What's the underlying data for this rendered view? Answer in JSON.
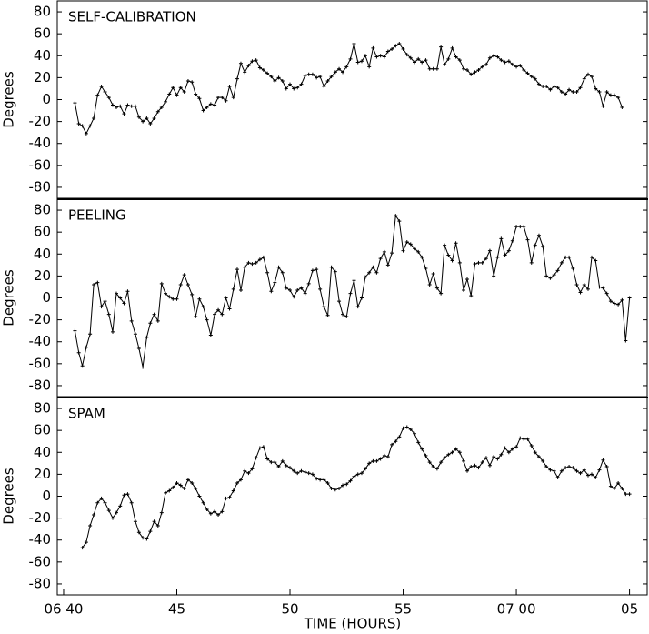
{
  "chart_data": [
    {
      "type": "line",
      "title": "SELF-CALIBRATION",
      "y_label": "Degrees",
      "color": "#000000",
      "xlim": [
        39.72,
        65.82
      ],
      "ylim": [
        -90,
        90
      ],
      "yticks": [
        -80,
        -60,
        -40,
        -20,
        0,
        20,
        40,
        60,
        80
      ],
      "x": [
        40.5,
        40.67,
        40.83,
        41,
        41.17,
        41.33,
        41.5,
        41.67,
        41.83,
        42,
        42.17,
        42.33,
        42.5,
        42.67,
        42.83,
        43,
        43.17,
        43.33,
        43.5,
        43.67,
        43.83,
        44,
        44.17,
        44.33,
        44.5,
        44.67,
        44.83,
        45,
        45.17,
        45.33,
        45.5,
        45.67,
        45.83,
        46,
        46.17,
        46.33,
        46.5,
        46.67,
        46.83,
        47,
        47.17,
        47.33,
        47.5,
        47.67,
        47.83,
        48,
        48.17,
        48.33,
        48.5,
        48.67,
        48.83,
        49,
        49.17,
        49.33,
        49.5,
        49.67,
        49.83,
        50,
        50.17,
        50.33,
        50.5,
        50.67,
        50.83,
        51,
        51.17,
        51.33,
        51.5,
        51.67,
        51.83,
        52,
        52.17,
        52.33,
        52.5,
        52.67,
        52.83,
        53,
        53.17,
        53.33,
        53.5,
        53.67,
        53.83,
        54,
        54.17,
        54.33,
        54.5,
        54.67,
        54.83,
        55,
        55.17,
        55.33,
        55.5,
        55.67,
        55.83,
        56,
        56.17,
        56.33,
        56.5,
        56.67,
        56.83,
        57,
        57.17,
        57.33,
        57.5,
        57.67,
        57.83,
        58,
        58.17,
        58.33,
        58.5,
        58.67,
        58.83,
        59,
        59.17,
        59.33,
        59.5,
        59.67,
        59.83,
        60,
        60.17,
        60.33,
        60.5,
        60.67,
        60.83,
        61,
        61.17,
        61.33,
        61.5,
        61.67,
        61.83,
        62,
        62.17,
        62.33,
        62.5,
        62.67,
        62.83,
        63,
        63.17,
        63.33,
        63.5,
        63.67,
        63.83,
        64,
        64.17,
        64.33,
        64.5,
        64.67
      ],
      "values": [
        -3,
        -22,
        -24,
        -31,
        -24,
        -17,
        4,
        12,
        7,
        2,
        -5,
        -7,
        -6,
        -13,
        -5,
        -6,
        -6,
        -16,
        -20,
        -17,
        -22,
        -17,
        -11,
        -7,
        -2,
        5,
        11,
        4,
        11,
        7,
        17,
        16,
        5,
        1,
        -10,
        -7,
        -4,
        -5,
        2,
        2,
        -1,
        12,
        2,
        19,
        33,
        25,
        31,
        35,
        36,
        29,
        27,
        24,
        21,
        17,
        20,
        17,
        10,
        14,
        10,
        11,
        14,
        22,
        23,
        23,
        20,
        21,
        12,
        17,
        21,
        25,
        28,
        25,
        30,
        37,
        51,
        34,
        35,
        40,
        30,
        47,
        39,
        40,
        39,
        44,
        46,
        49,
        51,
        46,
        41,
        38,
        34,
        37,
        34,
        36,
        28,
        28,
        28,
        48,
        32,
        37,
        47,
        39,
        36,
        28,
        27,
        23,
        25,
        27,
        30,
        32,
        38,
        40,
        39,
        36,
        34,
        35,
        32,
        30,
        31,
        27,
        24,
        21,
        19,
        14,
        12,
        12,
        9,
        12,
        11,
        7,
        5,
        9,
        7,
        7,
        11,
        19,
        23,
        21,
        10,
        7,
        -6,
        7,
        4,
        4,
        2,
        -7
      ]
    },
    {
      "type": "line",
      "title": "PEELING",
      "y_label": "Degrees",
      "color": "#000000",
      "xlim": [
        39.72,
        65.82
      ],
      "ylim": [
        -90,
        90
      ],
      "yticks": [
        -80,
        -60,
        -40,
        -20,
        0,
        20,
        40,
        60,
        80
      ],
      "x": [
        40.5,
        40.67,
        40.83,
        41,
        41.17,
        41.33,
        41.5,
        41.67,
        41.83,
        42,
        42.17,
        42.33,
        42.5,
        42.67,
        42.83,
        43,
        43.17,
        43.33,
        43.5,
        43.67,
        43.83,
        44,
        44.17,
        44.33,
        44.5,
        44.67,
        44.83,
        45,
        45.17,
        45.33,
        45.5,
        45.67,
        45.83,
        46,
        46.17,
        46.33,
        46.5,
        46.67,
        46.83,
        47,
        47.17,
        47.33,
        47.5,
        47.67,
        47.83,
        48,
        48.17,
        48.33,
        48.5,
        48.67,
        48.83,
        49,
        49.17,
        49.33,
        49.5,
        49.67,
        49.83,
        50,
        50.17,
        50.33,
        50.5,
        50.67,
        50.83,
        51,
        51.17,
        51.33,
        51.5,
        51.67,
        51.83,
        52,
        52.17,
        52.33,
        52.5,
        52.67,
        52.83,
        53,
        53.17,
        53.33,
        53.5,
        53.67,
        53.83,
        54,
        54.17,
        54.33,
        54.5,
        54.67,
        54.83,
        55,
        55.17,
        55.33,
        55.5,
        55.67,
        55.83,
        56,
        56.17,
        56.33,
        56.5,
        56.67,
        56.83,
        57,
        57.17,
        57.33,
        57.5,
        57.67,
        57.83,
        58,
        58.17,
        58.33,
        58.5,
        58.67,
        58.83,
        59,
        59.17,
        59.33,
        59.5,
        59.67,
        59.83,
        60,
        60.17,
        60.33,
        60.5,
        60.67,
        60.83,
        61,
        61.17,
        61.33,
        61.5,
        61.67,
        61.83,
        62,
        62.17,
        62.33,
        62.5,
        62.67,
        62.83,
        63,
        63.17,
        63.33,
        63.5,
        63.67,
        63.83,
        64,
        64.17,
        64.33,
        64.5,
        64.67,
        64.83,
        65
      ],
      "values": [
        -30,
        -50,
        -62,
        -45,
        -33,
        12,
        14,
        -8,
        -3,
        -15,
        -31,
        4,
        0,
        -5,
        6,
        -21,
        -33,
        -46,
        -63,
        -36,
        -23,
        -15,
        -21,
        13,
        4,
        1,
        -1,
        -1,
        12,
        21,
        12,
        3,
        -17,
        -1,
        -8,
        -20,
        -34,
        -15,
        -11,
        -15,
        0,
        -10,
        8,
        26,
        7,
        28,
        32,
        31,
        32,
        35,
        37,
        23,
        6,
        14,
        28,
        23,
        9,
        7,
        1,
        7,
        9,
        4,
        13,
        25,
        26,
        8,
        -8,
        -16,
        28,
        24,
        -3,
        -15,
        -17,
        4,
        16,
        -8,
        0,
        19,
        23,
        28,
        23,
        36,
        42,
        30,
        41,
        75,
        70,
        43,
        51,
        49,
        45,
        42,
        37,
        27,
        12,
        22,
        9,
        4,
        48,
        39,
        34,
        50,
        32,
        7,
        17,
        2,
        31,
        32,
        32,
        36,
        43,
        20,
        37,
        54,
        39,
        43,
        52,
        65,
        65,
        65,
        53,
        32,
        48,
        57,
        47,
        20,
        18,
        21,
        25,
        32,
        37,
        37,
        27,
        12,
        5,
        12,
        8,
        37,
        34,
        10,
        9,
        4,
        -3,
        -5,
        -6,
        -2,
        -39,
        0
      ]
    },
    {
      "type": "line",
      "title": "SPAM",
      "y_label": "Degrees",
      "x_label": "TIME (HOURS)",
      "color": "#000000",
      "xlim": [
        39.72,
        65.82
      ],
      "ylim": [
        -90,
        90
      ],
      "yticks": [
        -80,
        -60,
        -40,
        -20,
        0,
        20,
        40,
        60,
        80
      ],
      "xticks": [
        {
          "value": 40,
          "label": "06 40"
        },
        45,
        50,
        55,
        {
          "value": 60,
          "label": "07 00"
        },
        {
          "value": 65,
          "label": "05"
        }
      ],
      "x": [
        40.83,
        41,
        41.17,
        41.33,
        41.5,
        41.67,
        41.83,
        42,
        42.17,
        42.33,
        42.5,
        42.67,
        42.83,
        43,
        43.17,
        43.33,
        43.5,
        43.67,
        43.83,
        44,
        44.17,
        44.33,
        44.5,
        44.67,
        44.83,
        45,
        45.17,
        45.33,
        45.5,
        45.67,
        45.83,
        46,
        46.17,
        46.33,
        46.5,
        46.67,
        46.83,
        47,
        47.17,
        47.33,
        47.5,
        47.67,
        47.83,
        48,
        48.17,
        48.33,
        48.5,
        48.67,
        48.83,
        49,
        49.17,
        49.33,
        49.5,
        49.67,
        49.83,
        50,
        50.17,
        50.33,
        50.5,
        50.67,
        50.83,
        51,
        51.17,
        51.33,
        51.5,
        51.67,
        51.83,
        52,
        52.17,
        52.33,
        52.5,
        52.67,
        52.83,
        53,
        53.17,
        53.33,
        53.5,
        53.67,
        53.83,
        54,
        54.17,
        54.33,
        54.5,
        54.67,
        54.83,
        55,
        55.17,
        55.33,
        55.5,
        55.67,
        55.83,
        56,
        56.17,
        56.33,
        56.5,
        56.67,
        56.83,
        57,
        57.17,
        57.33,
        57.5,
        57.67,
        57.83,
        58,
        58.17,
        58.33,
        58.5,
        58.67,
        58.83,
        59,
        59.17,
        59.33,
        59.5,
        59.67,
        59.83,
        60,
        60.17,
        60.33,
        60.5,
        60.67,
        60.83,
        61,
        61.17,
        61.33,
        61.5,
        61.67,
        61.83,
        62,
        62.17,
        62.33,
        62.5,
        62.67,
        62.83,
        63,
        63.17,
        63.33,
        63.5,
        63.67,
        63.83,
        64,
        64.17,
        64.33,
        64.5,
        64.67,
        64.83,
        65
      ],
      "values": [
        -47,
        -42,
        -27,
        -17,
        -6,
        -2,
        -6,
        -13,
        -20,
        -15,
        -9,
        1,
        2,
        -6,
        -23,
        -33,
        -38,
        -39,
        -32,
        -23,
        -27,
        -15,
        3,
        5,
        8,
        12,
        10,
        7,
        15,
        12,
        7,
        0,
        -6,
        -12,
        -16,
        -14,
        -17,
        -14,
        -2,
        -1,
        5,
        12,
        15,
        23,
        21,
        25,
        35,
        44,
        45,
        34,
        31,
        31,
        27,
        32,
        28,
        26,
        23,
        21,
        23,
        22,
        21,
        20,
        16,
        15,
        15,
        12,
        7,
        6,
        7,
        10,
        11,
        14,
        18,
        20,
        21,
        25,
        30,
        32,
        32,
        34,
        37,
        36,
        47,
        50,
        54,
        62,
        63,
        61,
        57,
        49,
        43,
        37,
        31,
        27,
        25,
        31,
        35,
        38,
        40,
        43,
        40,
        32,
        23,
        27,
        28,
        26,
        31,
        35,
        28,
        36,
        34,
        38,
        44,
        40,
        43,
        45,
        53,
        52,
        52,
        46,
        40,
        36,
        32,
        27,
        24,
        23,
        17,
        23,
        26,
        27,
        26,
        23,
        21,
        24,
        19,
        20,
        17,
        24,
        33,
        27,
        9,
        7,
        12,
        7,
        2,
        2
      ]
    }
  ]
}
